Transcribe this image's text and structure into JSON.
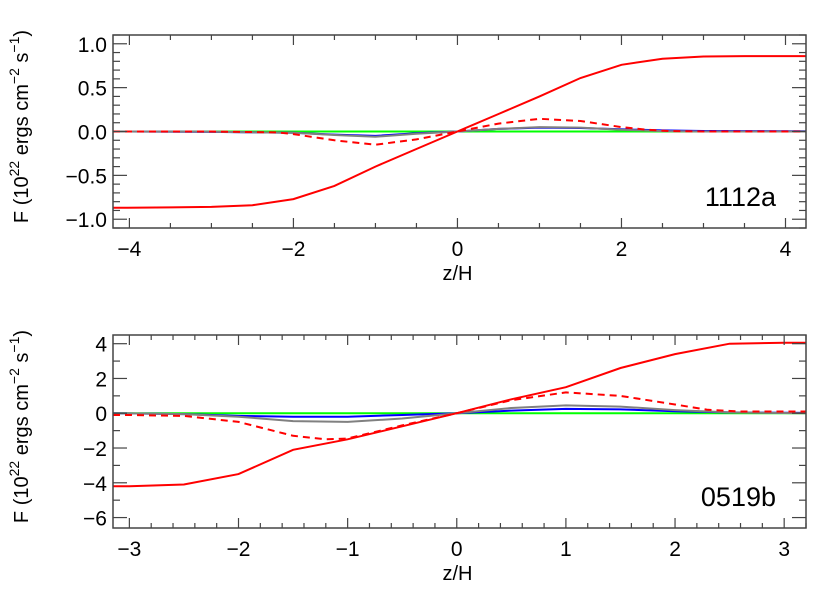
{
  "chart_data": [
    {
      "type": "line",
      "annotation": "1112a",
      "xlabel": "z/H",
      "ylabel": {
        "base": "F (10",
        "exp1": "22",
        "mid": " ergs cm",
        "exp2": "−2",
        "mid2": " s",
        "exp3": "−1",
        "end": ")"
      },
      "xlim": [
        -4.2,
        4.25
      ],
      "ylim": [
        -1.1,
        1.1
      ],
      "xticks": [
        -4,
        -2,
        0,
        2,
        4
      ],
      "xtick_labels": [
        "−4",
        "−2",
        "0",
        "2",
        "4"
      ],
      "xminor": 0.5,
      "yticks": [
        -1.0,
        -0.5,
        0.0,
        0.5,
        1.0
      ],
      "ytick_labels": [
        "−1.0",
        "−0.5",
        "0.0",
        "0.5",
        "1.0"
      ],
      "yminor": 0.1,
      "grid": false,
      "series": [
        {
          "color": "#00ff00",
          "dash": false,
          "x": [
            -4.2,
            4.25
          ],
          "y": [
            0,
            0
          ]
        },
        {
          "color": "#0000ff",
          "dash": false,
          "x": [
            -4.2,
            -3,
            -2,
            -1.5,
            -1,
            -0.5,
            0,
            0.5,
            1,
            1.5,
            2,
            2.5,
            3,
            4.25
          ],
          "y": [
            0,
            -0.005,
            -0.015,
            -0.035,
            -0.05,
            -0.02,
            0,
            0.03,
            0.045,
            0.04,
            0.025,
            0.012,
            0.006,
            0.002
          ]
        },
        {
          "color": "#808080",
          "dash": false,
          "x": [
            -4.2,
            -3,
            -2,
            -1.5,
            -1,
            -0.5,
            0,
            0.5,
            1,
            1.5,
            2,
            2.5,
            3,
            4.25
          ],
          "y": [
            0,
            -0.003,
            -0.015,
            -0.04,
            -0.06,
            -0.025,
            0,
            0.03,
            0.05,
            0.045,
            0.02,
            0.005,
            0,
            0
          ]
        },
        {
          "color": "#ff0000",
          "dash": true,
          "x": [
            -4.2,
            -3,
            -2.2,
            -2,
            -1.5,
            -1,
            -0.5,
            0,
            0.5,
            1,
            1.5,
            2,
            2.3,
            2.6,
            3,
            4.25
          ],
          "y": [
            0,
            0,
            -0.01,
            -0.03,
            -0.1,
            -0.15,
            -0.09,
            0,
            0.09,
            0.145,
            0.12,
            0.05,
            0.02,
            0.005,
            0,
            0
          ]
        },
        {
          "color": "#ff0000",
          "dash": false,
          "x": [
            -4.2,
            -3.5,
            -3,
            -2.5,
            -2,
            -1.5,
            -1,
            -0.5,
            0,
            0.5,
            1,
            1.5,
            2,
            2.5,
            3,
            3.5,
            4.25
          ],
          "y": [
            -0.87,
            -0.865,
            -0.86,
            -0.84,
            -0.77,
            -0.62,
            -0.4,
            -0.2,
            0,
            0.2,
            0.4,
            0.61,
            0.76,
            0.83,
            0.855,
            0.86,
            0.86
          ]
        }
      ]
    },
    {
      "type": "line",
      "annotation": "0519b",
      "xlabel": "z/H",
      "ylabel": {
        "base": "F (10",
        "exp1": "22",
        "mid": " ergs cm",
        "exp2": "−2",
        "mid2": " s",
        "exp3": "−1",
        "end": ")"
      },
      "xlim": [
        -3.15,
        3.2
      ],
      "ylim": [
        -6.6,
        4.5
      ],
      "xticks": [
        -3,
        -2,
        -1,
        0,
        1,
        2,
        3
      ],
      "xtick_labels": [
        "−3",
        "−2",
        "−1",
        "0",
        "1",
        "2",
        "3"
      ],
      "xminor": 0.2,
      "yticks": [
        -6,
        -4,
        -2,
        0,
        2,
        4
      ],
      "ytick_labels": [
        "−6",
        "−4",
        "−2",
        "0",
        "2",
        "4"
      ],
      "yminor": 1,
      "grid": false,
      "series": [
        {
          "color": "#00ff00",
          "dash": false,
          "x": [
            -3.15,
            3.2
          ],
          "y": [
            0,
            0
          ]
        },
        {
          "color": "#0000ff",
          "dash": false,
          "x": [
            -3.15,
            -2.5,
            -2,
            -1.5,
            -1,
            -0.5,
            0,
            0.5,
            1,
            1.5,
            2,
            2.5,
            3.2
          ],
          "y": [
            0,
            -0.05,
            -0.15,
            -0.2,
            -0.2,
            -0.1,
            0,
            0.15,
            0.25,
            0.22,
            0.12,
            0.05,
            0.02
          ]
        },
        {
          "color": "#808080",
          "dash": false,
          "x": [
            -3.15,
            -2.5,
            -2,
            -1.5,
            -1,
            -0.5,
            0,
            0.5,
            1,
            1.5,
            2,
            2.5,
            3.2
          ],
          "y": [
            0,
            -0.05,
            -0.2,
            -0.45,
            -0.5,
            -0.3,
            0,
            0.3,
            0.45,
            0.38,
            0.18,
            0.05,
            0
          ]
        },
        {
          "color": "#ff0000",
          "dash": true,
          "x": [
            -3.15,
            -3,
            -2.5,
            -2,
            -1.5,
            -1.2,
            -1,
            -0.5,
            0,
            0.5,
            1,
            1.5,
            2,
            2.3,
            2.6,
            3.2
          ],
          "y": [
            -0.1,
            -0.1,
            -0.15,
            -0.5,
            -1.3,
            -1.5,
            -1.45,
            -0.7,
            0,
            0.75,
            1.2,
            1.0,
            0.5,
            0.2,
            0.1,
            0.1
          ]
        },
        {
          "color": "#ff0000",
          "dash": false,
          "x": [
            -3.15,
            -3,
            -2.5,
            -2,
            -1.5,
            -1,
            -0.5,
            0,
            0.5,
            1,
            1.5,
            2,
            2.5,
            3,
            3.2
          ],
          "y": [
            -4.2,
            -4.2,
            -4.1,
            -3.5,
            -2.1,
            -1.5,
            -0.75,
            0,
            0.8,
            1.5,
            2.6,
            3.4,
            4.0,
            4.05,
            4.05
          ]
        }
      ]
    }
  ]
}
